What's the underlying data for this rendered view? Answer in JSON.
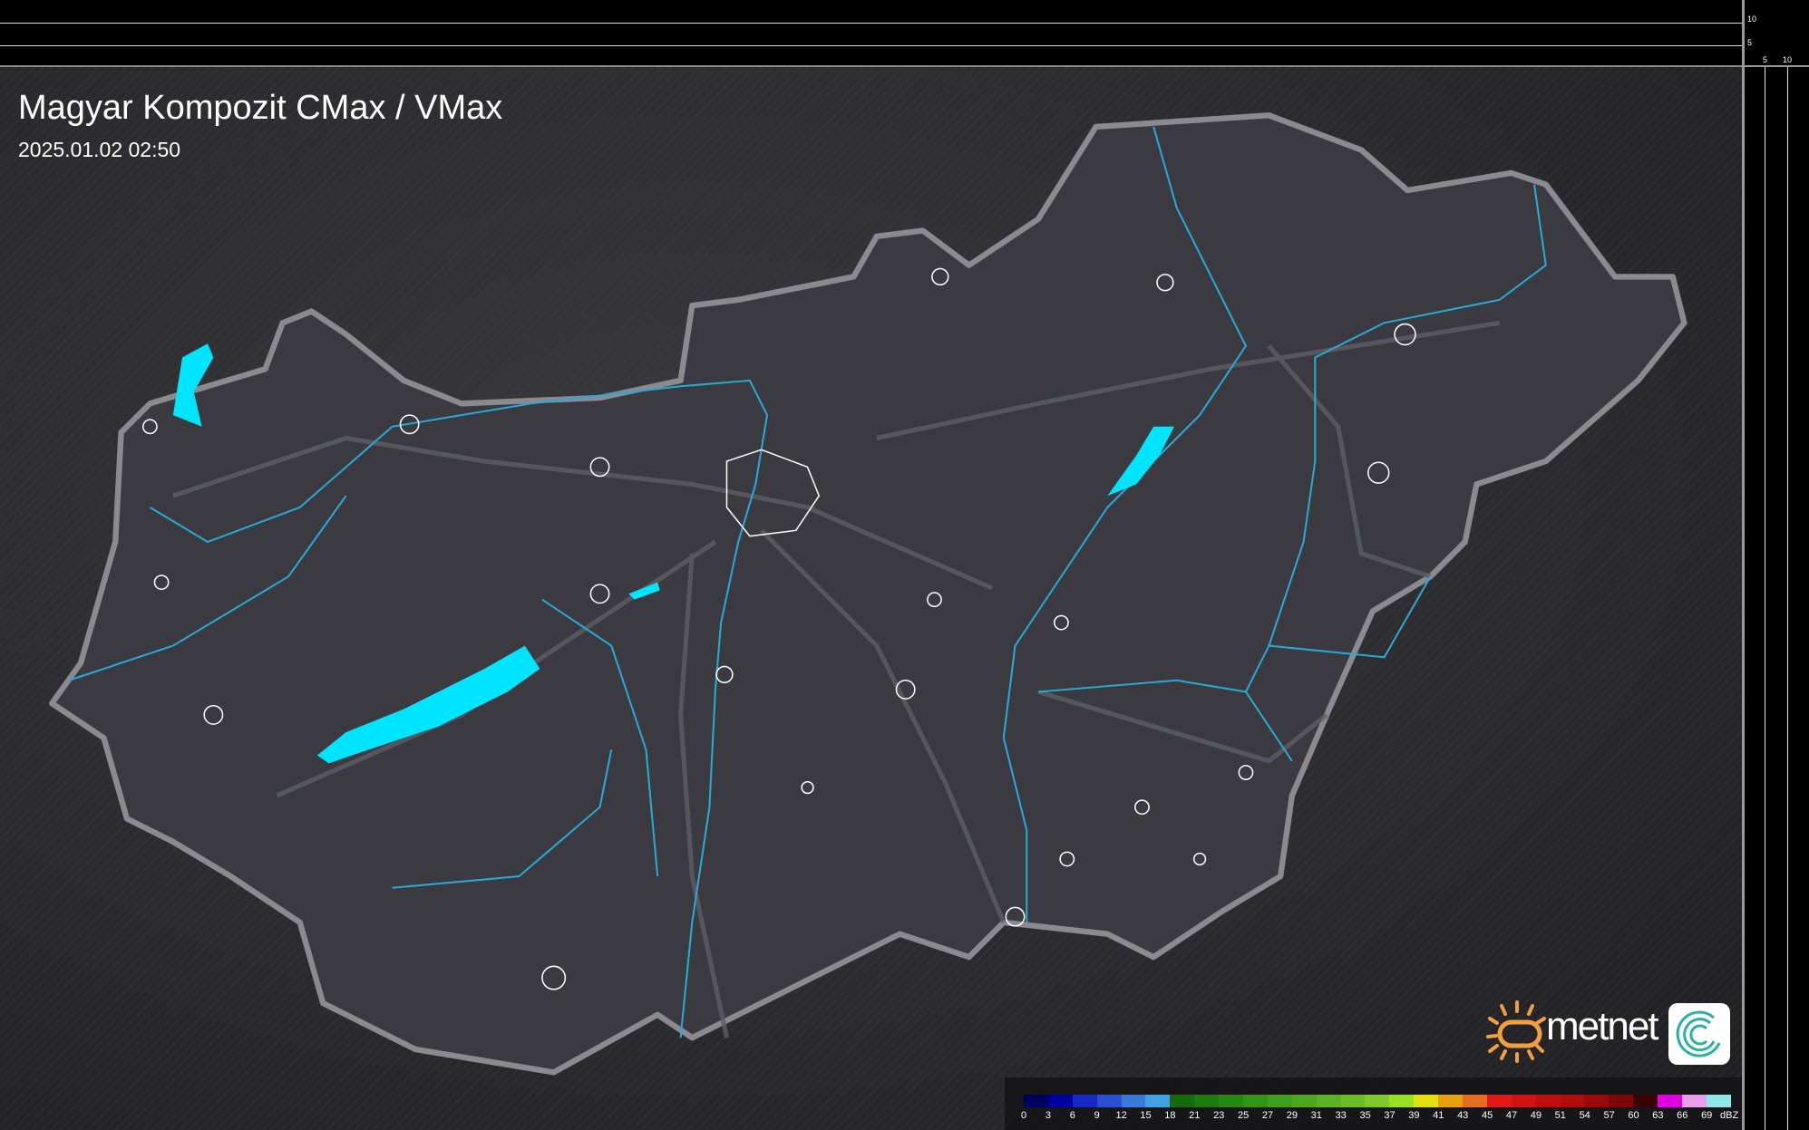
{
  "header": {
    "title": "Magyar Kompozit CMax / VMax",
    "datetime": "2025.01.02 02:50"
  },
  "scale": {
    "top_ticks": [
      "10",
      "5"
    ],
    "right_ticks": [
      "5",
      "10"
    ]
  },
  "legend": {
    "unit": "dBZ",
    "items": [
      {
        "label": "0",
        "color": "#00005e"
      },
      {
        "label": "3",
        "color": "#0000a0"
      },
      {
        "label": "6",
        "color": "#1428c4"
      },
      {
        "label": "9",
        "color": "#2a4ed6"
      },
      {
        "label": "12",
        "color": "#3a78dc"
      },
      {
        "label": "15",
        "color": "#40a2e2"
      },
      {
        "label": "18",
        "color": "#186a10"
      },
      {
        "label": "21",
        "color": "#1f7a0e"
      },
      {
        "label": "23",
        "color": "#288612"
      },
      {
        "label": "25",
        "color": "#349416"
      },
      {
        "label": "27",
        "color": "#409e1a"
      },
      {
        "label": "29",
        "color": "#4ea81e"
      },
      {
        "label": "31",
        "color": "#5cb222"
      },
      {
        "label": "33",
        "color": "#6cbc26"
      },
      {
        "label": "35",
        "color": "#82c82a"
      },
      {
        "label": "37",
        "color": "#98e024"
      },
      {
        "label": "39",
        "color": "#e4e010"
      },
      {
        "label": "41",
        "color": "#e8a010"
      },
      {
        "label": "43",
        "color": "#e46e1e"
      },
      {
        "label": "45",
        "color": "#e01818"
      },
      {
        "label": "47",
        "color": "#d01212"
      },
      {
        "label": "49",
        "color": "#c00e0e"
      },
      {
        "label": "51",
        "color": "#b00c0c"
      },
      {
        "label": "54",
        "color": "#9c0808"
      },
      {
        "label": "57",
        "color": "#7e0606"
      },
      {
        "label": "60",
        "color": "#3a0202"
      },
      {
        "label": "63",
        "color": "#e000e0"
      },
      {
        "label": "66",
        "color": "#e8a0e8"
      },
      {
        "label": "69",
        "color": "#90e6e8"
      }
    ]
  },
  "branding": {
    "name": "metnet"
  },
  "colors": {
    "water": "#00e5ff",
    "border": "#8a8a90",
    "river": "#2aa8d8",
    "country_fill": "#3a3a40"
  }
}
